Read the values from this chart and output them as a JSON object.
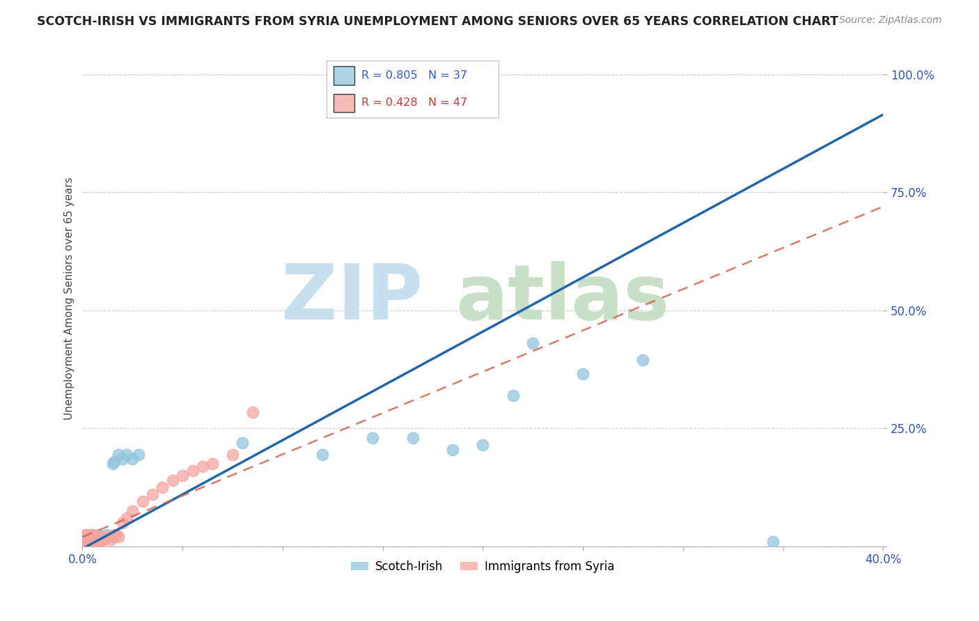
{
  "title": "SCOTCH-IRISH VS IMMIGRANTS FROM SYRIA UNEMPLOYMENT AMONG SENIORS OVER 65 YEARS CORRELATION CHART",
  "source": "Source: ZipAtlas.com",
  "ylabel": "Unemployment Among Seniors over 65 years",
  "xlim": [
    0.0,
    0.4
  ],
  "ylim": [
    0.0,
    1.05
  ],
  "xticks": [
    0.0,
    0.05,
    0.1,
    0.15,
    0.2,
    0.25,
    0.3,
    0.35,
    0.4
  ],
  "ytick_positions": [
    0.0,
    0.25,
    0.5,
    0.75,
    1.0
  ],
  "yticklabels": [
    "",
    "25.0%",
    "50.0%",
    "75.0%",
    "100.0%"
  ],
  "scotch_irish_color": "#92c5de",
  "syria_color": "#f4a6a0",
  "scotch_irish_line_color": "#2166ac",
  "syria_line_color": "#d6604d",
  "r_scotch": 0.805,
  "n_scotch": 37,
  "r_syria": 0.428,
  "n_syria": 47,
  "scotch_irish_x": [
    0.001,
    0.001,
    0.002,
    0.002,
    0.003,
    0.003,
    0.004,
    0.004,
    0.005,
    0.005,
    0.006,
    0.006,
    0.007,
    0.008,
    0.008,
    0.009,
    0.01,
    0.011,
    0.012,
    0.015,
    0.016,
    0.018,
    0.02,
    0.022,
    0.025,
    0.028,
    0.08,
    0.12,
    0.145,
    0.165,
    0.185,
    0.2,
    0.215,
    0.225,
    0.25,
    0.28,
    0.345
  ],
  "scotch_irish_y": [
    0.01,
    0.015,
    0.01,
    0.02,
    0.015,
    0.02,
    0.015,
    0.025,
    0.01,
    0.02,
    0.015,
    0.02,
    0.02,
    0.015,
    0.025,
    0.015,
    0.02,
    0.02,
    0.025,
    0.175,
    0.18,
    0.195,
    0.185,
    0.195,
    0.185,
    0.195,
    0.22,
    0.195,
    0.23,
    0.23,
    0.205,
    0.215,
    0.32,
    0.43,
    0.365,
    0.395,
    0.01
  ],
  "syria_x": [
    0.0005,
    0.001,
    0.001,
    0.001,
    0.001,
    0.002,
    0.002,
    0.002,
    0.003,
    0.003,
    0.003,
    0.003,
    0.004,
    0.004,
    0.004,
    0.005,
    0.005,
    0.005,
    0.006,
    0.006,
    0.007,
    0.007,
    0.008,
    0.008,
    0.009,
    0.01,
    0.011,
    0.012,
    0.013,
    0.014,
    0.015,
    0.016,
    0.017,
    0.018,
    0.02,
    0.022,
    0.025,
    0.03,
    0.035,
    0.04,
    0.045,
    0.05,
    0.055,
    0.06,
    0.065,
    0.075,
    0.085
  ],
  "syria_y": [
    0.01,
    0.01,
    0.015,
    0.02,
    0.025,
    0.01,
    0.015,
    0.02,
    0.01,
    0.015,
    0.02,
    0.025,
    0.01,
    0.015,
    0.02,
    0.01,
    0.015,
    0.025,
    0.01,
    0.02,
    0.01,
    0.02,
    0.01,
    0.02,
    0.015,
    0.015,
    0.015,
    0.02,
    0.02,
    0.015,
    0.02,
    0.025,
    0.025,
    0.02,
    0.05,
    0.06,
    0.075,
    0.095,
    0.11,
    0.125,
    0.14,
    0.15,
    0.16,
    0.17,
    0.175,
    0.195,
    0.285
  ]
}
